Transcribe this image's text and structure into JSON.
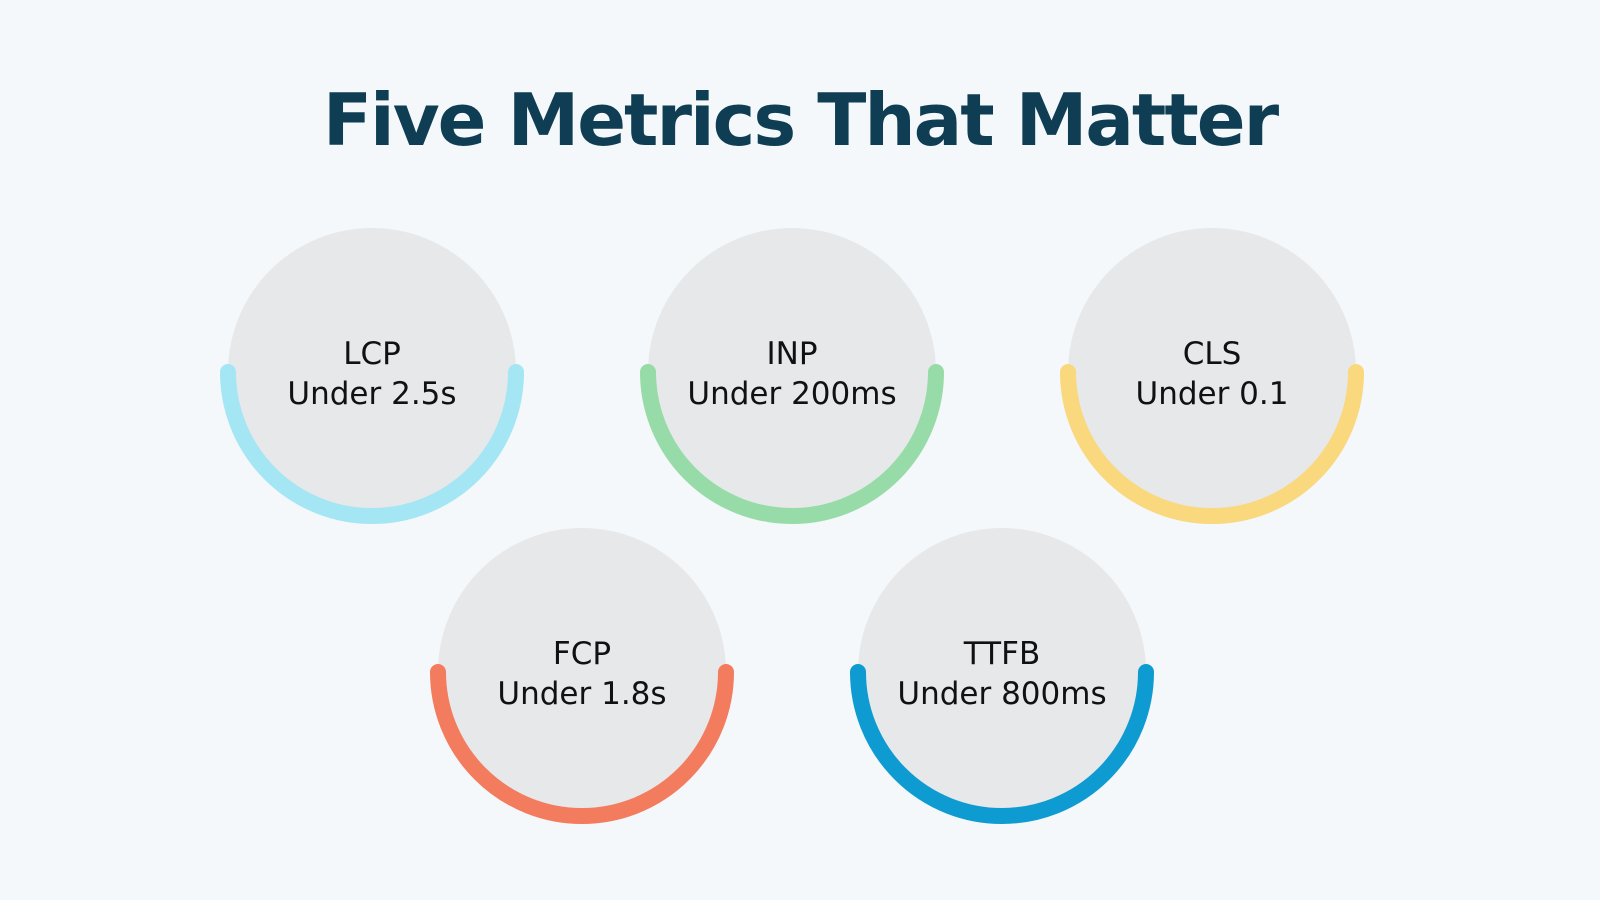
{
  "title": "Five Metrics That Matter",
  "circle_fill": "#e7e8ea",
  "metrics": [
    {
      "name": "LCP",
      "threshold": "Under 2.5s",
      "color": "#a5e6f5"
    },
    {
      "name": "INP",
      "threshold": "Under 200ms",
      "color": "#97dca8"
    },
    {
      "name": "CLS",
      "threshold": "Under 0.1",
      "color": "#fad87e"
    },
    {
      "name": "FCP",
      "threshold": "Under 1.8s",
      "color": "#f37b5e"
    },
    {
      "name": "TTFB",
      "threshold": "Under 800ms",
      "color": "#0e9bd1"
    }
  ]
}
